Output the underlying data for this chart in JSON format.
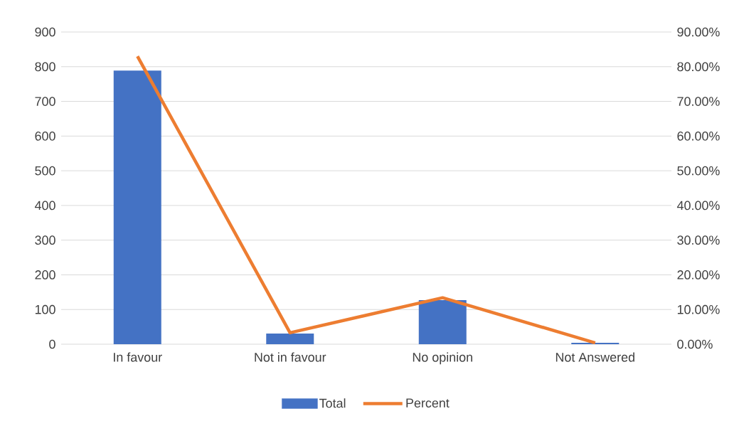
{
  "chart_data": {
    "type": "bar",
    "categories": [
      "In favour",
      "Not in favour",
      "No opinion",
      "Not Answered"
    ],
    "series": [
      {
        "name": "Total",
        "color": "#4472c4",
        "values": [
          789,
          31,
          127,
          4
        ]
      },
      {
        "name": "Percent",
        "type": "line",
        "axis": "y2",
        "color": "#ed7d31",
        "values": [
          83.0,
          3.3,
          13.4,
          0.4
        ]
      }
    ],
    "ylim": [
      0,
      900
    ],
    "yticks": [
      0,
      100,
      200,
      300,
      400,
      500,
      600,
      700,
      800,
      900
    ],
    "y2lim": [
      0,
      90
    ],
    "y2ticks": [
      {
        "value": 0,
        "label": "0.00%"
      },
      {
        "value": 10,
        "label": "10.00%"
      },
      {
        "value": 20,
        "label": "20.00%"
      },
      {
        "value": 30,
        "label": "30.00%"
      },
      {
        "value": 40,
        "label": "40.00%"
      },
      {
        "value": 50,
        "label": "50.00%"
      },
      {
        "value": 60,
        "label": "60.00%"
      },
      {
        "value": 70,
        "label": "70.00%"
      },
      {
        "value": 80,
        "label": "80.00%"
      },
      {
        "value": 90,
        "label": "90.00%"
      }
    ],
    "grid": "y",
    "legend": "bottom"
  }
}
